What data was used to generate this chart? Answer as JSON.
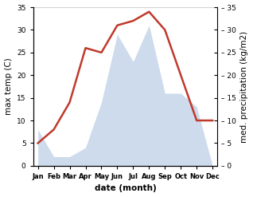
{
  "months": [
    "Jan",
    "Feb",
    "Mar",
    "Apr",
    "May",
    "Jun",
    "Jul",
    "Aug",
    "Sep",
    "Oct",
    "Nov",
    "Dec"
  ],
  "temperature": [
    5,
    8,
    14,
    26,
    25,
    31,
    32,
    34,
    30,
    20,
    10,
    10
  ],
  "precipitation": [
    8,
    2,
    2,
    4,
    14,
    29,
    23,
    31,
    16,
    16,
    13,
    0
  ],
  "temp_color": "#c0392b",
  "precip_color": "#b8cce4",
  "background_color": "#ffffff",
  "ylabel_left": "max temp (C)",
  "ylabel_right": "med. precipitation (kg/m2)",
  "xlabel": "date (month)",
  "ylim": [
    0,
    35
  ],
  "yticks": [
    0,
    5,
    10,
    15,
    20,
    25,
    30,
    35
  ],
  "label_fontsize": 7.5,
  "tick_fontsize": 6.5,
  "month_fontsize": 6.0
}
